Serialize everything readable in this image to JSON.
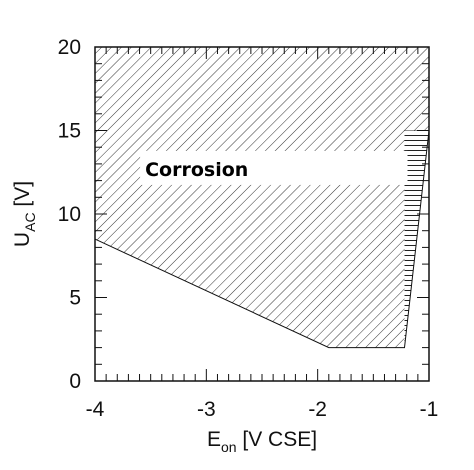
{
  "chart_data": {
    "type": "area",
    "title": "",
    "xlabel": {
      "main": "E",
      "sub": "on",
      "rest": " [V CSE]"
    },
    "ylabel": {
      "main": "U",
      "sub": "AC",
      "rest": " [V]"
    },
    "xlim": [
      -4,
      -1
    ],
    "ylim": [
      0,
      20
    ],
    "x_ticks": [
      -4,
      -3,
      -2,
      -1
    ],
    "x_tick_labels": [
      "-4",
      "-3",
      "-2",
      "-1"
    ],
    "y_ticks": [
      0,
      5,
      10,
      15,
      20
    ],
    "y_tick_labels": [
      "0",
      "5",
      "10",
      "15",
      "20"
    ],
    "x_minor_step": 0.1,
    "y_minor_step": 1,
    "grid": false,
    "regions": [
      {
        "name": "Corrosion",
        "pattern": "diagonal-hatch",
        "label": "Corrosion",
        "label_at": {
          "x": -3.55,
          "y": 12.7
        },
        "polygon": [
          [
            -4,
            8.5
          ],
          [
            -1.9,
            2.0
          ],
          [
            -1.22,
            2.0
          ],
          [
            -1.22,
            15.0
          ],
          [
            -1.0,
            15.0
          ],
          [
            -1.0,
            20
          ],
          [
            -4,
            20
          ]
        ]
      },
      {
        "name": "transition",
        "pattern": "horizontal-hatch",
        "polygon": [
          [
            -1.22,
            2.0
          ],
          [
            -1.22,
            15.0
          ],
          [
            -1.0,
            15.0
          ]
        ]
      }
    ],
    "boundary": [
      [
        -4,
        8.5
      ],
      [
        -1.9,
        2.0
      ],
      [
        -1.22,
        2.0
      ],
      [
        -1.0,
        15.0
      ]
    ]
  }
}
